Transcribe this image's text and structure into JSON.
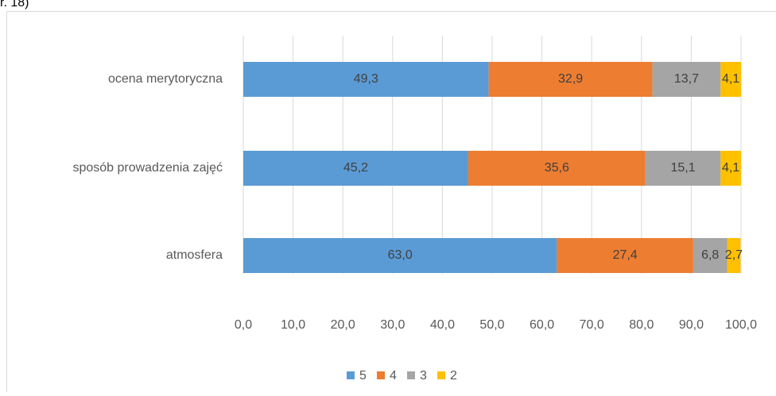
{
  "chart_data": {
    "type": "stacked_bar_horizontal",
    "annotation": "r. 18)",
    "categories": [
      "ocena merytoryczna",
      "sposób prowadzenia zajęć",
      "atmosfera"
    ],
    "series": [
      {
        "name": "5",
        "color": "#5b9bd5",
        "values": [
          49.3,
          45.2,
          63.0
        ],
        "value_labels": [
          "49,3",
          "45,2",
          "63,0"
        ]
      },
      {
        "name": "4",
        "color": "#ed7d31",
        "values": [
          32.9,
          35.6,
          27.4
        ],
        "value_labels": [
          "32,9",
          "35,6",
          "27,4"
        ]
      },
      {
        "name": "3",
        "color": "#a5a5a5",
        "values": [
          13.7,
          15.1,
          6.8
        ],
        "value_labels": [
          "13,7",
          "15,1",
          "6,8"
        ]
      },
      {
        "name": "2",
        "color": "#ffc000",
        "values": [
          4.1,
          4.1,
          2.7
        ],
        "value_labels": [
          "4,1",
          "4,1",
          "2,7"
        ]
      }
    ],
    "xlim": [
      0,
      100
    ],
    "xticks": [
      {
        "value": 0,
        "label": "0,0"
      },
      {
        "value": 10,
        "label": "10,0"
      },
      {
        "value": 20,
        "label": "20,0"
      },
      {
        "value": 30,
        "label": "30,0"
      },
      {
        "value": 40,
        "label": "40,0"
      },
      {
        "value": 50,
        "label": "50,0"
      },
      {
        "value": 60,
        "label": "60,0"
      },
      {
        "value": 70,
        "label": "70,0"
      },
      {
        "value": 80,
        "label": "80,0"
      },
      {
        "value": 90,
        "label": "90,0"
      },
      {
        "value": 100,
        "label": "100,0"
      }
    ],
    "grid": true,
    "legend": "bottom"
  }
}
